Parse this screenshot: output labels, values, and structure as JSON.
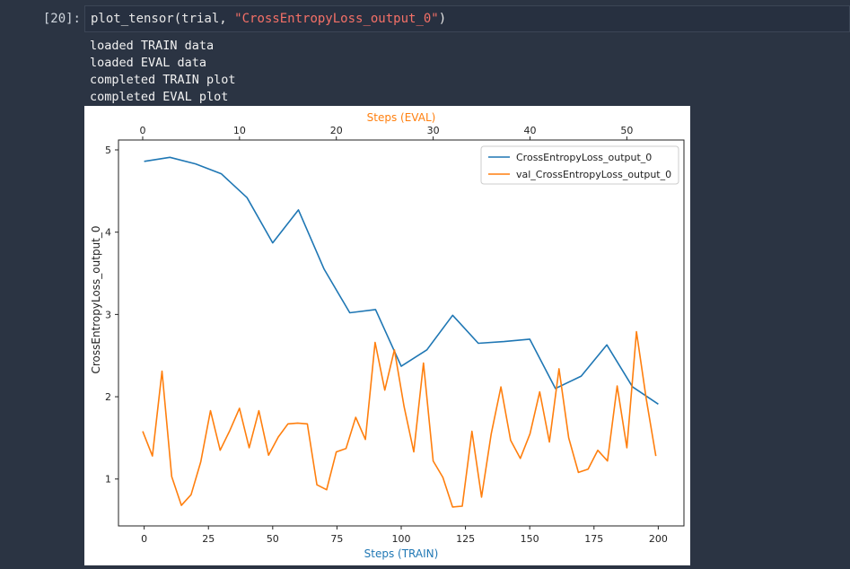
{
  "cell": {
    "prompt": "[20]:",
    "code_prefix": "plot_tensor(trial, ",
    "code_string": "\"CrossEntropyLoss_output_0\"",
    "code_suffix": ")"
  },
  "output_lines": [
    "loaded TRAIN data",
    "loaded EVAL data",
    "completed TRAIN plot",
    "completed EVAL plot"
  ],
  "colors": {
    "train": "#1f77b4",
    "eval": "#ff7f0e",
    "background": "#2b3443",
    "string": "#f47067"
  },
  "chart_data": {
    "type": "line",
    "xlabel": "Steps (TRAIN)",
    "x2label": "Steps (EVAL)",
    "ylabel": "CrossEntropyLoss_output_0",
    "xlim": [
      -10,
      210
    ],
    "x2lim": [
      -2.5,
      55.9
    ],
    "ylim": [
      0.43,
      5.12
    ],
    "xticks": [
      0,
      25,
      50,
      75,
      100,
      125,
      150,
      175,
      200
    ],
    "x2ticks": [
      0,
      10,
      20,
      30,
      40,
      50
    ],
    "yticks": [
      1,
      2,
      3,
      4,
      5
    ],
    "legend_position": "upper right",
    "series": [
      {
        "name": "CrossEntropyLoss_output_0",
        "axis": "bottom",
        "x": [
          0,
          10,
          20,
          30,
          40,
          50,
          60,
          70,
          80,
          90,
          100,
          110,
          120,
          130,
          140,
          150,
          160,
          170,
          180,
          190,
          200
        ],
        "y": [
          4.86,
          4.91,
          4.83,
          4.71,
          4.42,
          3.87,
          4.27,
          3.55,
          3.02,
          3.06,
          2.37,
          2.57,
          2.99,
          2.65,
          2.67,
          2.7,
          2.1,
          2.25,
          2.63,
          2.12,
          1.91
        ]
      },
      {
        "name": "val_CrossEntropyLoss_output_0",
        "axis": "top",
        "x": [
          0,
          1,
          2,
          3,
          4,
          5,
          6,
          7,
          8,
          9,
          10,
          11,
          12,
          13,
          14,
          15,
          16,
          17,
          18,
          19,
          20,
          21,
          22,
          23,
          24,
          25,
          26,
          27,
          28,
          29,
          30,
          31,
          32,
          33,
          34,
          35,
          36,
          37,
          38,
          39,
          40,
          41,
          42,
          43,
          44,
          45,
          46,
          47,
          48,
          49,
          50,
          51,
          52,
          53
        ],
        "y": [
          1.58,
          1.28,
          2.31,
          1.03,
          0.68,
          0.81,
          1.21,
          1.83,
          1.35,
          1.59,
          1.86,
          1.38,
          1.83,
          1.29,
          1.51,
          1.67,
          1.68,
          1.67,
          0.93,
          0.87,
          1.33,
          1.37,
          1.75,
          1.48,
          2.66,
          2.08,
          2.57,
          1.88,
          1.33,
          2.41,
          1.22,
          1.02,
          0.66,
          0.67,
          1.58,
          0.78,
          1.55,
          2.12,
          1.47,
          1.25,
          1.55,
          2.06,
          1.45,
          2.34,
          1.5,
          1.08,
          1.12,
          1.35,
          1.22,
          2.13,
          1.38,
          2.79,
          1.98,
          1.28
        ]
      }
    ]
  }
}
